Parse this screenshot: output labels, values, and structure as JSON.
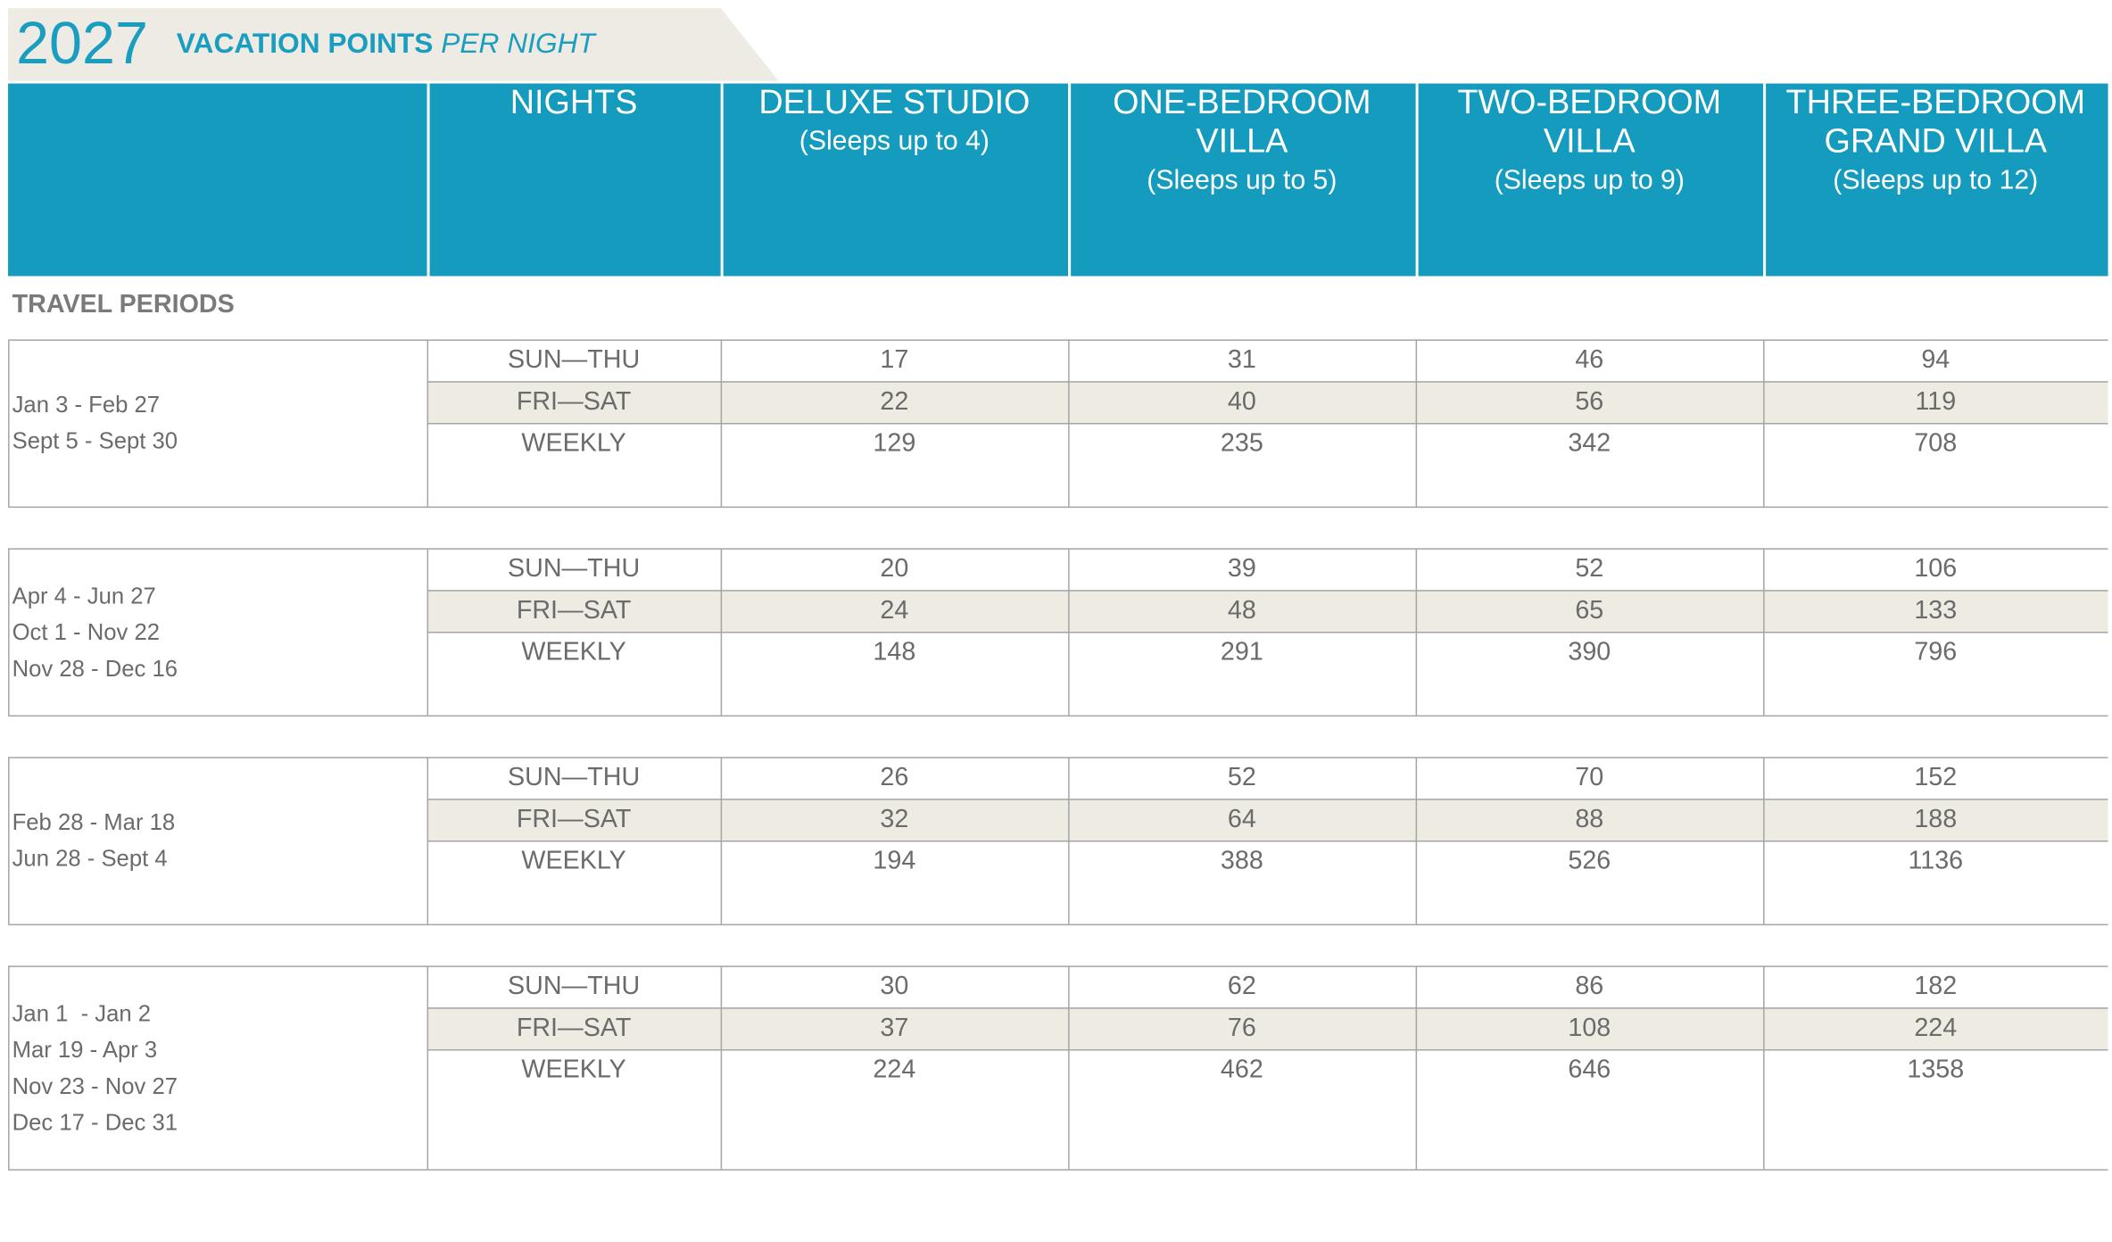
{
  "header": {
    "year": "2027",
    "title_bold": "VACATION POINTS",
    "title_italic": "PER NIGHT"
  },
  "table": {
    "columns": [
      {
        "lines": [
          "NIGHTS"
        ]
      },
      {
        "lines": [
          "DELUXE STUDIO",
          "(Sleeps up to 4)"
        ]
      },
      {
        "lines": [
          "ONE-BEDROOM",
          "VILLA",
          "(Sleeps up to 5)"
        ]
      },
      {
        "lines": [
          "TWO-BEDROOM",
          "VILLA",
          "(Sleeps up to 9)"
        ]
      },
      {
        "lines": [
          "THREE-BEDROOM",
          "GRAND VILLA",
          "(Sleeps up to 12)"
        ]
      }
    ],
    "section_label": "TRAVEL PERIODS",
    "groups": [
      {
        "periods": [
          "Jan 3 - Feb 27",
          "Sept 5 - Sept 30"
        ],
        "rows": [
          {
            "nights": "SUN—THU",
            "values": [
              17,
              31,
              46,
              94
            ]
          },
          {
            "nights": "FRI—SAT",
            "values": [
              22,
              40,
              56,
              119
            ]
          },
          {
            "nights": "WEEKLY",
            "values": [
              129,
              235,
              342,
              708
            ]
          }
        ]
      },
      {
        "periods": [
          "Apr 4 - Jun 27",
          "Oct 1 - Nov 22",
          "Nov 28 - Dec 16"
        ],
        "rows": [
          {
            "nights": "SUN—THU",
            "values": [
              20,
              39,
              52,
              106
            ]
          },
          {
            "nights": "FRI—SAT",
            "values": [
              24,
              48,
              65,
              133
            ]
          },
          {
            "nights": "WEEKLY",
            "values": [
              148,
              291,
              390,
              796
            ]
          }
        ]
      },
      {
        "periods": [
          "Feb 28 - Mar 18",
          "Jun 28 - Sept 4"
        ],
        "rows": [
          {
            "nights": "SUN—THU",
            "values": [
              26,
              52,
              70,
              152
            ]
          },
          {
            "nights": "FRI—SAT",
            "values": [
              32,
              64,
              88,
              188
            ]
          },
          {
            "nights": "WEEKLY",
            "values": [
              194,
              388,
              526,
              1136
            ]
          }
        ]
      },
      {
        "periods": [
          "Jan 1  - Jan 2",
          "Mar 19 - Apr 3",
          "Nov 23 - Nov 27",
          "Dec 17 - Dec 31"
        ],
        "rows": [
          {
            "nights": "SUN—THU",
            "values": [
              30,
              62,
              86,
              182
            ]
          },
          {
            "nights": "FRI—SAT",
            "values": [
              37,
              76,
              108,
              224
            ]
          },
          {
            "nights": "WEEKLY",
            "values": [
              224,
              462,
              646,
              1358
            ]
          }
        ]
      }
    ]
  }
}
